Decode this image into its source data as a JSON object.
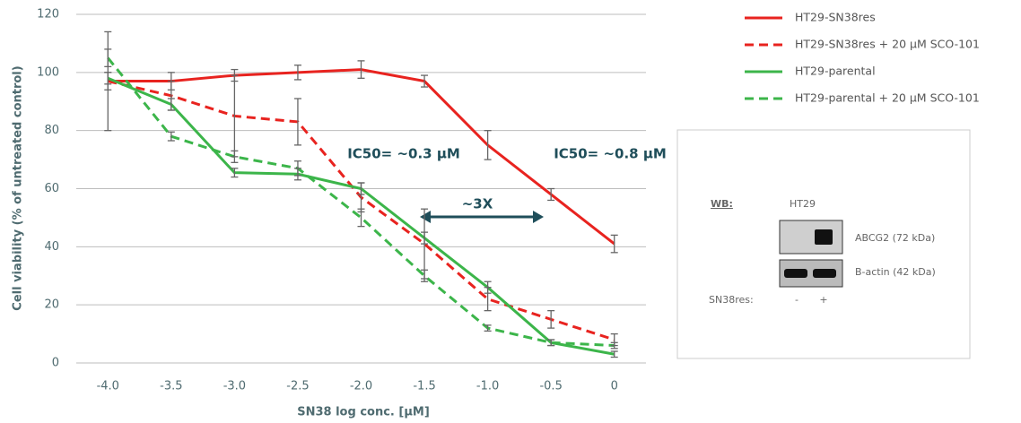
{
  "chart_data": {
    "type": "line",
    "x_label": "SN38 log conc. [µM]",
    "y_label": "Cell viability (% of untreated control)",
    "x": [
      -4,
      -3.5,
      -3,
      -2.5,
      -2,
      -1.5,
      -1,
      -0.5,
      0
    ],
    "xlim": [
      -4.25,
      0.25
    ],
    "xticks": [
      {
        "value": -4,
        "label": "-4.0"
      },
      -3.5,
      {
        "value": -3,
        "label": "-3.0"
      },
      -2.5,
      {
        "value": -2,
        "label": "-2.0"
      },
      -1.5,
      {
        "value": -1,
        "label": "-1.0"
      },
      -0.5,
      0
    ],
    "ylim": [
      0,
      120
    ],
    "yticks": [
      0,
      20,
      40,
      60,
      80,
      100,
      120
    ],
    "grid": true,
    "legend": "outside right",
    "series": [
      {
        "name": "HT29-SN38res",
        "color": "#e8231f",
        "dash": false,
        "values": [
          97,
          97,
          99,
          100,
          101,
          97,
          75,
          58,
          41
        ],
        "errors": [
          17,
          3,
          2,
          2.5,
          3,
          2,
          5,
          2,
          3
        ]
      },
      {
        "name": "HT29-SN38res + 20 µM SCO-101",
        "color": "#e8231f",
        "dash": true,
        "values": [
          97,
          92,
          85,
          83,
          57,
          41,
          22,
          15,
          8
        ],
        "errors": [
          3,
          5,
          14,
          8,
          5,
          12,
          4,
          3,
          2
        ]
      },
      {
        "name": "HT29-parental",
        "color": "#3cb54a",
        "dash": false,
        "values": [
          98,
          89,
          65.5,
          65,
          60,
          43,
          26,
          7,
          3
        ],
        "errors": [
          2,
          2,
          1.5,
          2,
          2,
          2,
          2,
          1,
          1
        ]
      },
      {
        "name": "HT29-parental + 20 µM SCO-101",
        "color": "#3cb54a",
        "dash": true,
        "values": [
          105,
          78,
          71,
          67,
          50,
          30,
          12,
          7,
          6
        ],
        "errors": [
          3,
          1.5,
          2,
          2.5,
          3,
          2,
          1,
          1,
          1
        ]
      }
    ],
    "annotations": [
      "IC50= ~0.3 µM",
      "IC50= ~0.8 µM",
      "~3X"
    ]
  },
  "inset": {
    "wb": "WB:",
    "cell_line": "HT29",
    "band_1": "ABCG2 (72 kDa)",
    "band_2": "B-actin (42 kDa)",
    "row_label": "SN38res:",
    "lane_1": "-",
    "lane_2": "+"
  }
}
